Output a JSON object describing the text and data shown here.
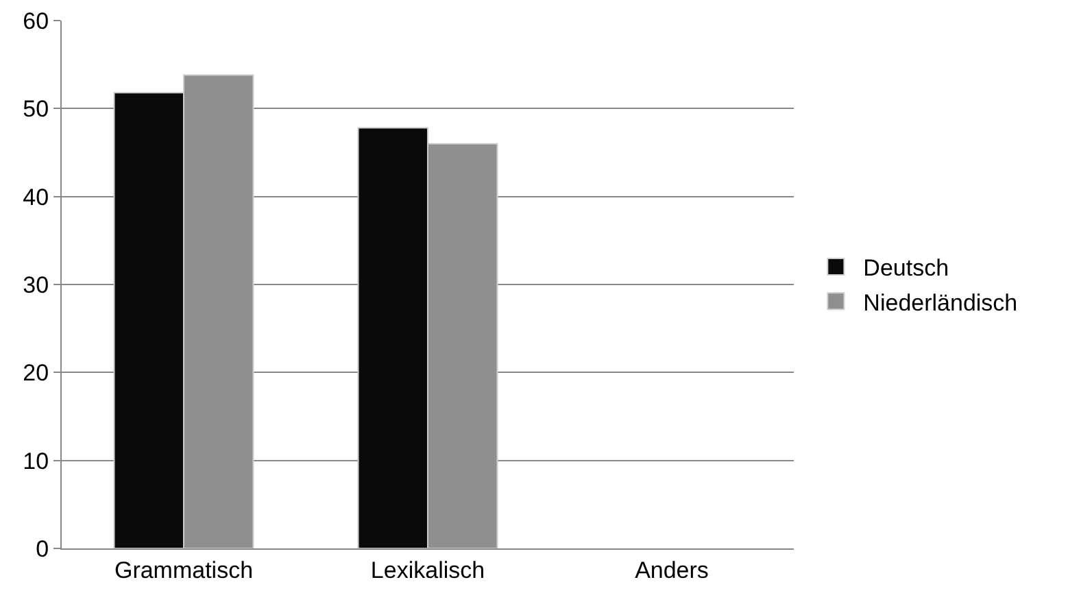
{
  "chart_data": {
    "type": "bar",
    "categories": [
      "Grammatisch",
      "Lexikalisch",
      "Anders"
    ],
    "series": [
      {
        "name": "Deutsch",
        "color": "#0a0a0a",
        "values": [
          51.8,
          47.8,
          null
        ]
      },
      {
        "name": "Niederländisch",
        "color": "#8f8f8f",
        "values": [
          53.8,
          46,
          null
        ]
      }
    ],
    "ylim": [
      0,
      60
    ],
    "yticks": [
      0,
      10,
      20,
      30,
      40,
      50,
      60
    ],
    "grid": "y",
    "legend": "right"
  }
}
